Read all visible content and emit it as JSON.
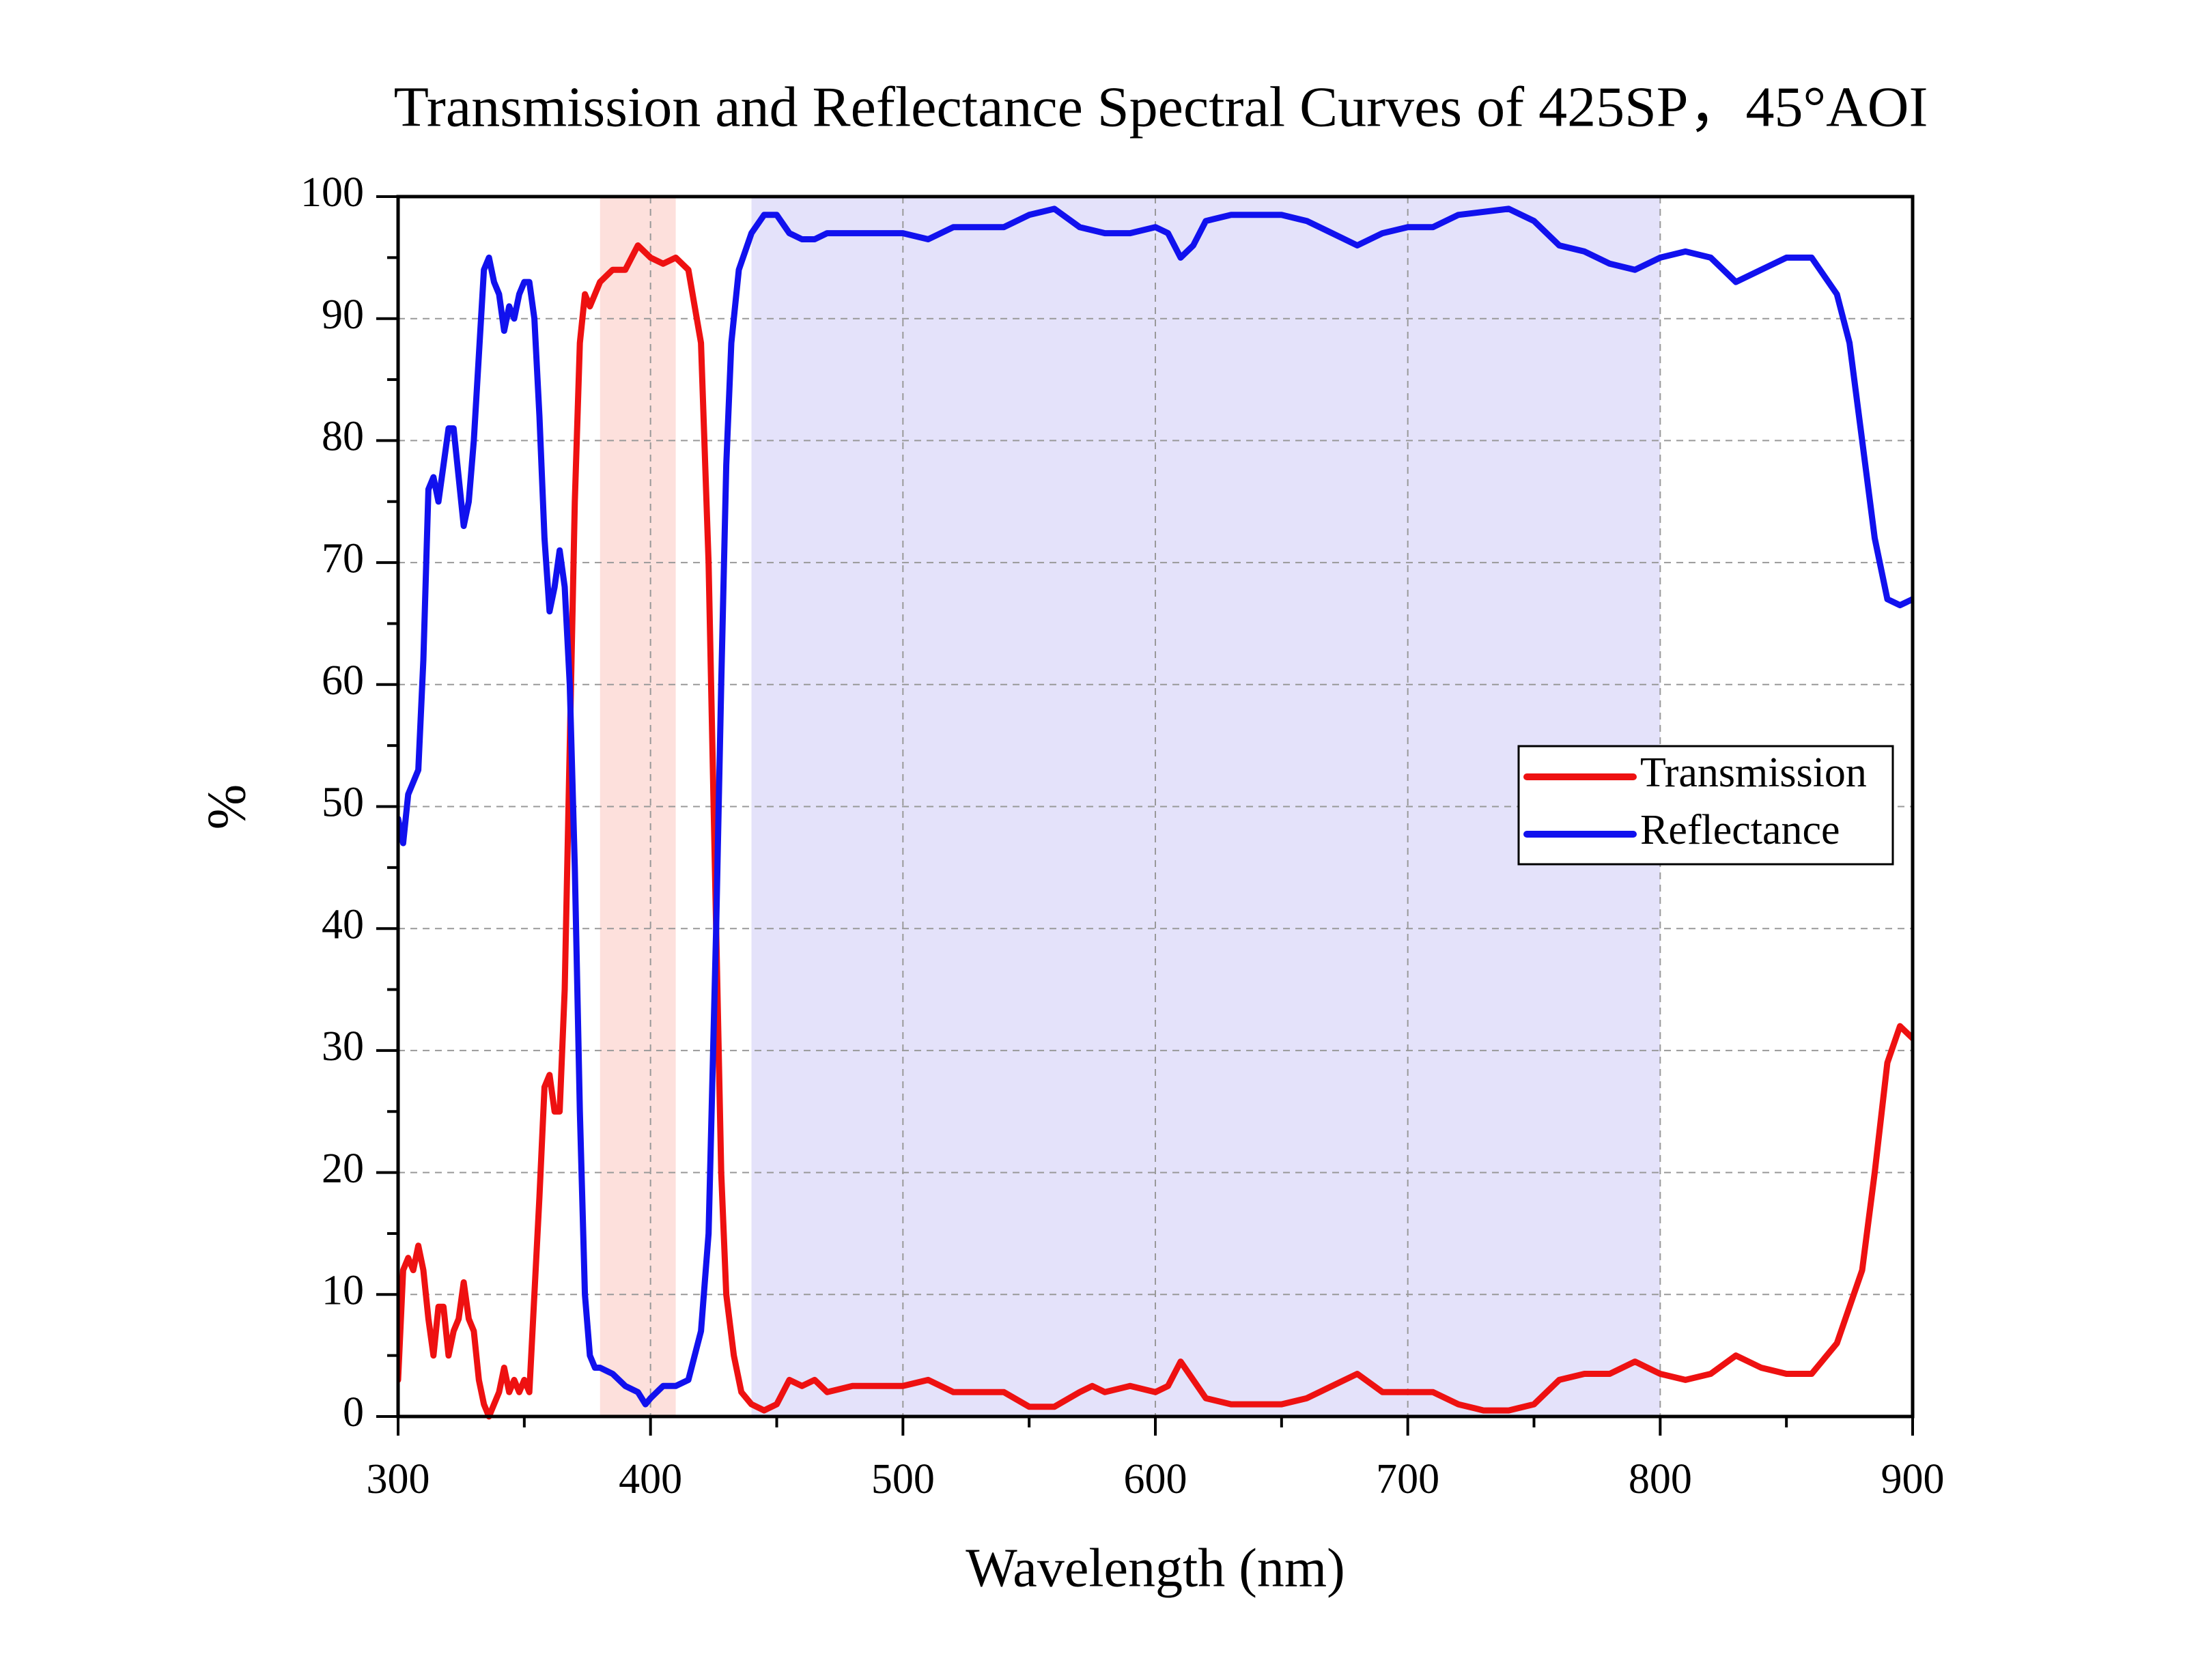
{
  "chart_data": {
    "type": "line",
    "title": "Transmission and Reflectance Spectral Curves of 425SP，45°AOI",
    "xlabel": "Wavelength (nm)",
    "ylabel": "%",
    "xlim": [
      300,
      900
    ],
    "ylim": [
      0,
      100
    ],
    "xticks": [
      300,
      400,
      500,
      600,
      700,
      800,
      900
    ],
    "yticks": [
      0,
      10,
      20,
      30,
      40,
      50,
      60,
      70,
      80,
      90,
      100
    ],
    "xminorticks": [
      350,
      450,
      550,
      650,
      750,
      850
    ],
    "yminorticks": [
      5,
      15,
      25,
      35,
      45,
      55,
      65,
      75,
      85,
      95
    ],
    "grid": true,
    "legend": "right",
    "shaded_regions": [
      {
        "xlim": [
          380,
          410
        ],
        "color": "#fde0dc"
      },
      {
        "xlim": [
          440,
          800
        ],
        "color": "#e4e2fa"
      }
    ],
    "series": [
      {
        "name": "Transmission",
        "color": "#ee1111",
        "x": [
          300,
          302,
          304,
          306,
          308,
          310,
          312,
          314,
          316,
          318,
          320,
          322,
          324,
          326,
          328,
          330,
          332,
          334,
          336,
          338,
          340,
          342,
          344,
          346,
          348,
          350,
          352,
          354,
          356,
          358,
          360,
          362,
          364,
          366,
          368,
          370,
          372,
          374,
          376,
          378,
          380,
          385,
          390,
          395,
          400,
          405,
          410,
          415,
          420,
          423,
          426,
          428,
          430,
          433,
          436,
          440,
          445,
          450,
          455,
          460,
          465,
          470,
          480,
          490,
          500,
          510,
          520,
          530,
          540,
          550,
          560,
          570,
          575,
          580,
          590,
          600,
          605,
          610,
          615,
          620,
          630,
          650,
          660,
          670,
          680,
          690,
          700,
          710,
          720,
          730,
          740,
          750,
          760,
          770,
          780,
          790,
          800,
          810,
          820,
          830,
          840,
          850,
          860,
          870,
          880,
          885,
          890,
          895,
          900
        ],
        "values": [
          3,
          12,
          13,
          12,
          14,
          12,
          8,
          5,
          9,
          9,
          5,
          7,
          8,
          11,
          8,
          7,
          3,
          1,
          0,
          1,
          2,
          4,
          2,
          3,
          2,
          3,
          2,
          10,
          18,
          27,
          28,
          25,
          25,
          35,
          55,
          75,
          88,
          92,
          91,
          92,
          93,
          94,
          94,
          96,
          95,
          94.5,
          95,
          94,
          88,
          70,
          40,
          20,
          10,
          5,
          2,
          1,
          0.5,
          1,
          3,
          2.5,
          3,
          2,
          2.5,
          2.5,
          2.5,
          3,
          2,
          2,
          2,
          0.8,
          0.8,
          2,
          2.5,
          2,
          2.5,
          2,
          2.5,
          4.5,
          3,
          1.5,
          1,
          1,
          1.5,
          2.5,
          3.5,
          2,
          2,
          2,
          1,
          0.5,
          0.5,
          1,
          3,
          3.5,
          3.5,
          4.5,
          3.5,
          3,
          3.5,
          5,
          4,
          3.5,
          3.5,
          6,
          12,
          20,
          29,
          32,
          31
        ]
      },
      {
        "name": "Reflectance",
        "color": "#1111ee",
        "x": [
          300,
          302,
          304,
          306,
          308,
          310,
          312,
          314,
          316,
          318,
          320,
          322,
          324,
          326,
          328,
          330,
          332,
          334,
          336,
          338,
          340,
          342,
          344,
          346,
          348,
          350,
          352,
          354,
          356,
          358,
          360,
          362,
          364,
          366,
          368,
          370,
          372,
          374,
          376,
          378,
          380,
          385,
          390,
          395,
          398,
          400,
          405,
          410,
          415,
          420,
          423,
          426,
          428,
          430,
          432,
          435,
          440,
          445,
          450,
          455,
          460,
          465,
          470,
          480,
          490,
          500,
          510,
          520,
          530,
          540,
          550,
          560,
          570,
          580,
          590,
          600,
          605,
          610,
          615,
          620,
          630,
          650,
          660,
          670,
          680,
          690,
          700,
          710,
          720,
          740,
          750,
          760,
          770,
          780,
          790,
          800,
          810,
          820,
          830,
          840,
          850,
          860,
          870,
          875,
          880,
          885,
          890,
          895,
          900
        ],
        "values": [
          49,
          47,
          51,
          52,
          53,
          62,
          76,
          77,
          75,
          78,
          81,
          81,
          77,
          73,
          75,
          80,
          87,
          94,
          95,
          93,
          92,
          89,
          91,
          90,
          92,
          93,
          93,
          90,
          82,
          72,
          66,
          68,
          71,
          68,
          60,
          45,
          25,
          10,
          5,
          4,
          4,
          3.5,
          2.5,
          2,
          1,
          1.5,
          2.5,
          2.5,
          3,
          7,
          15,
          40,
          60,
          78,
          88,
          94,
          97,
          98.5,
          98.5,
          97,
          96.5,
          96.5,
          97,
          97,
          97,
          97,
          96.5,
          97.5,
          97.5,
          97.5,
          98.5,
          99,
          97.5,
          97,
          97,
          97.5,
          97,
          95,
          96,
          98,
          98.5,
          98.5,
          98,
          97,
          96,
          97,
          97.5,
          97.5,
          98.5,
          99,
          98,
          96,
          95.5,
          94.5,
          94,
          95,
          95.5,
          95,
          93,
          94,
          95,
          95,
          92,
          88,
          80,
          72,
          67,
          66.5,
          67
        ]
      }
    ]
  }
}
